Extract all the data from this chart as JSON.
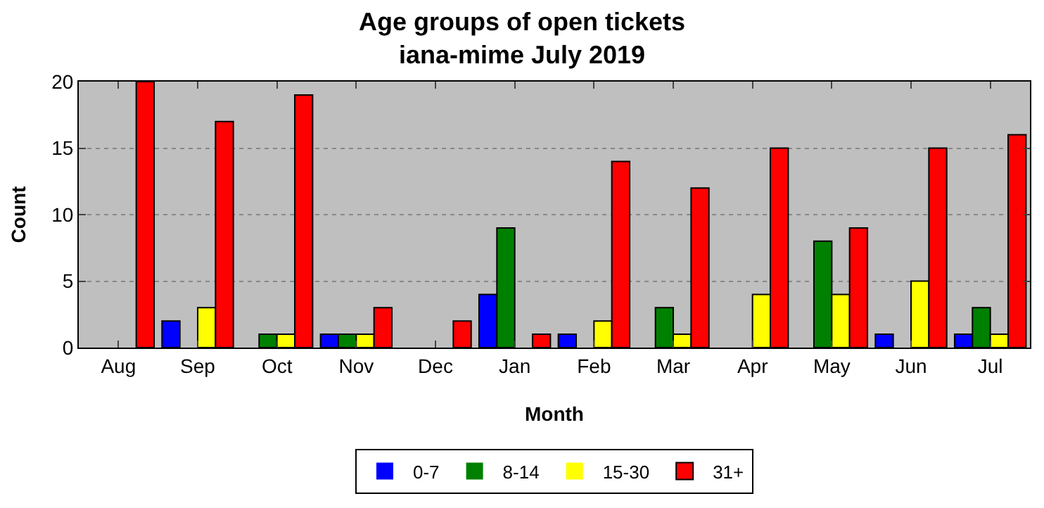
{
  "chart_data": {
    "type": "bar",
    "title": "Age groups of open tickets\niana-mime July 2019",
    "xlabel": "Month",
    "ylabel": "Count",
    "categories": [
      "Aug",
      "Sep",
      "Oct",
      "Nov",
      "Dec",
      "Jan",
      "Feb",
      "Mar",
      "Apr",
      "May",
      "Jun",
      "Jul"
    ],
    "series": [
      {
        "name": "0-7",
        "color": "#0000ff",
        "values": [
          0,
          2,
          0,
          1,
          0,
          4,
          1,
          0,
          0,
          0,
          1,
          1
        ]
      },
      {
        "name": "8-14",
        "color": "#008000",
        "values": [
          0,
          0,
          1,
          1,
          0,
          9,
          0,
          3,
          0,
          8,
          0,
          3
        ]
      },
      {
        "name": "15-30",
        "color": "#ffff00",
        "values": [
          0,
          3,
          1,
          1,
          0,
          0,
          2,
          1,
          4,
          4,
          5,
          1
        ]
      },
      {
        "name": "31+",
        "color": "#ff0000",
        "values": [
          20,
          17,
          19,
          3,
          2,
          1,
          14,
          12,
          15,
          9,
          15,
          16
        ]
      }
    ],
    "ylim": [
      0,
      20
    ],
    "yticks": [
      0,
      5,
      10,
      15,
      20
    ],
    "grid": "y",
    "legend": "bottom"
  }
}
